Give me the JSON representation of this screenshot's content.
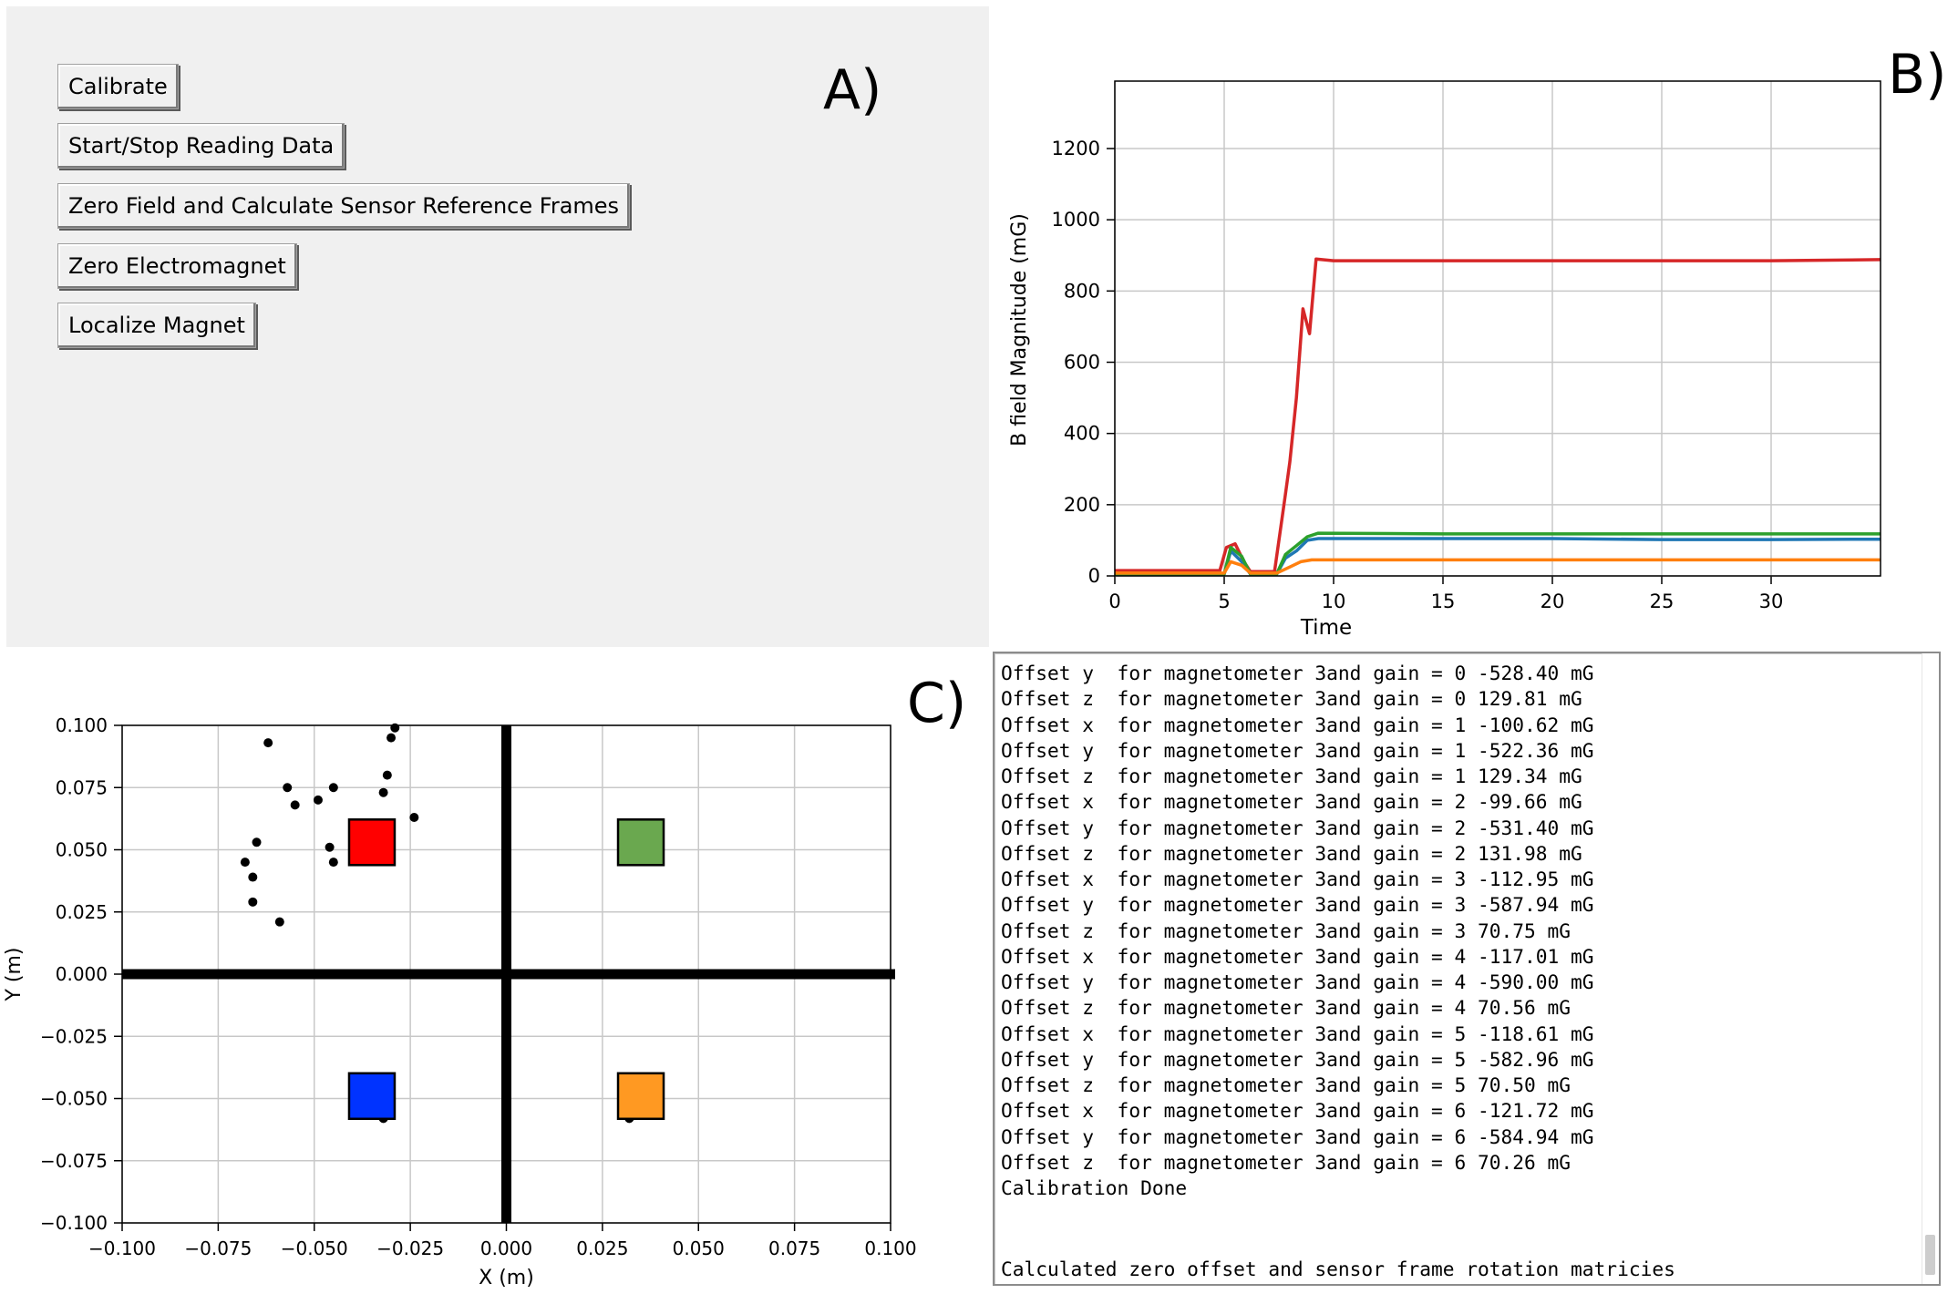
{
  "panel_a": {
    "label": "A)",
    "buttons": [
      {
        "label": "Calibrate"
      },
      {
        "label": "Start/Stop Reading Data"
      },
      {
        "label": "Zero Field and Calculate Sensor Reference Frames"
      },
      {
        "label": "Zero Electromagnet"
      },
      {
        "label": "Localize Magnet"
      }
    ]
  },
  "panel_b": {
    "label": "B)"
  },
  "panel_c": {
    "label": "C)"
  },
  "colors": {
    "red": "#d62728",
    "blue": "#1f77b4",
    "green": "#2ca02c",
    "orange": "#ff7f0e",
    "square_red": "#ff0000",
    "square_green": "#6aa84f",
    "square_blue": "#0033ff",
    "square_orange": "#ff9922"
  },
  "chart_data": [
    {
      "type": "line",
      "xlabel": "Time",
      "ylabel": "B field Magnitude (mG)",
      "xlim": [
        0,
        35
      ],
      "ylim": [
        0,
        1200
      ],
      "xticks": [
        "0",
        "5",
        "10",
        "15",
        "20",
        "25",
        "30"
      ],
      "yticks": [
        "0",
        "200",
        "400",
        "600",
        "800",
        "1000",
        "1200"
      ],
      "grid": true,
      "series": [
        {
          "color": "#d62728",
          "points": [
            [
              0,
              15
            ],
            [
              4.8,
              15
            ],
            [
              5.1,
              80
            ],
            [
              5.5,
              90
            ],
            [
              5.9,
              40
            ],
            [
              6.2,
              12
            ],
            [
              7.3,
              12
            ],
            [
              7.8,
              230
            ],
            [
              8.0,
              320
            ],
            [
              8.3,
              500
            ],
            [
              8.6,
              750
            ],
            [
              8.9,
              680
            ],
            [
              9.2,
              890
            ],
            [
              10,
              885
            ],
            [
              15,
              885
            ],
            [
              20,
              885
            ],
            [
              25,
              885
            ],
            [
              30,
              885
            ],
            [
              35,
              888
            ]
          ]
        },
        {
          "color": "#1f77b4",
          "points": [
            [
              0,
              5
            ],
            [
              5.0,
              5
            ],
            [
              5.3,
              70
            ],
            [
              5.8,
              40
            ],
            [
              6.2,
              5
            ],
            [
              7.4,
              5
            ],
            [
              7.8,
              50
            ],
            [
              8.3,
              70
            ],
            [
              8.8,
              100
            ],
            [
              9.3,
              105
            ],
            [
              15,
              105
            ],
            [
              20,
              105
            ],
            [
              25,
              102
            ],
            [
              30,
              102
            ],
            [
              35,
              103
            ]
          ]
        },
        {
          "color": "#2ca02c",
          "points": [
            [
              0,
              5
            ],
            [
              5.0,
              5
            ],
            [
              5.3,
              80
            ],
            [
              5.8,
              55
            ],
            [
              6.2,
              5
            ],
            [
              7.4,
              5
            ],
            [
              7.8,
              60
            ],
            [
              8.3,
              85
            ],
            [
              8.8,
              110
            ],
            [
              9.3,
              120
            ],
            [
              15,
              118
            ],
            [
              20,
              118
            ],
            [
              25,
              118
            ],
            [
              30,
              118
            ],
            [
              35,
              118
            ]
          ]
        },
        {
          "color": "#ff7f0e",
          "points": [
            [
              0,
              8
            ],
            [
              5.0,
              8
            ],
            [
              5.3,
              40
            ],
            [
              5.8,
              30
            ],
            [
              6.2,
              8
            ],
            [
              7.4,
              8
            ],
            [
              8.0,
              25
            ],
            [
              8.5,
              40
            ],
            [
              9.0,
              45
            ],
            [
              15,
              45
            ],
            [
              20,
              45
            ],
            [
              25,
              45
            ],
            [
              30,
              45
            ],
            [
              35,
              45
            ]
          ]
        }
      ]
    },
    {
      "type": "scatter",
      "xlabel": "X (m)",
      "ylabel": "Y (m)",
      "xlim": [
        -0.1,
        0.1
      ],
      "ylim": [
        -0.1,
        0.1
      ],
      "xticks": [
        "−0.100",
        "−0.075",
        "−0.050",
        "−0.025",
        "0.000",
        "0.025",
        "0.050",
        "0.075",
        "0.100"
      ],
      "yticks": [
        "−0.100",
        "−0.075",
        "−0.050",
        "−0.025",
        "0.000",
        "0.025",
        "0.050",
        "0.075",
        "0.100"
      ],
      "grid": true,
      "points": [
        [
          -0.062,
          0.093
        ],
        [
          -0.057,
          0.075
        ],
        [
          -0.055,
          0.068
        ],
        [
          -0.049,
          0.07
        ],
        [
          -0.045,
          0.075
        ],
        [
          -0.03,
          0.095
        ],
        [
          -0.029,
          0.099
        ],
        [
          -0.031,
          0.08
        ],
        [
          -0.032,
          0.073
        ],
        [
          -0.024,
          0.063
        ],
        [
          -0.046,
          0.051
        ],
        [
          -0.045,
          0.045
        ],
        [
          -0.065,
          0.053
        ],
        [
          -0.068,
          0.045
        ],
        [
          -0.066,
          0.039
        ],
        [
          -0.066,
          0.029
        ],
        [
          -0.059,
          0.021
        ],
        [
          -0.032,
          -0.058
        ],
        [
          0.032,
          -0.058
        ]
      ],
      "squares": [
        {
          "x": -0.035,
          "y": 0.053,
          "color": "#ff0000"
        },
        {
          "x": 0.035,
          "y": 0.053,
          "color": "#6aa84f"
        },
        {
          "x": -0.035,
          "y": -0.049,
          "color": "#0033ff"
        },
        {
          "x": 0.035,
          "y": -0.049,
          "color": "#ff9922"
        }
      ]
    }
  ],
  "console": {
    "lines": [
      "Offset y  for magnetometer 3and gain = 0 -528.40 mG",
      "Offset z  for magnetometer 3and gain = 0 129.81 mG",
      "Offset x  for magnetometer 3and gain = 1 -100.62 mG",
      "Offset y  for magnetometer 3and gain = 1 -522.36 mG",
      "Offset z  for magnetometer 3and gain = 1 129.34 mG",
      "Offset x  for magnetometer 3and gain = 2 -99.66 mG",
      "Offset y  for magnetometer 3and gain = 2 -531.40 mG",
      "Offset z  for magnetometer 3and gain = 2 131.98 mG",
      "Offset x  for magnetometer 3and gain = 3 -112.95 mG",
      "Offset y  for magnetometer 3and gain = 3 -587.94 mG",
      "Offset z  for magnetometer 3and gain = 3 70.75 mG",
      "Offset x  for magnetometer 3and gain = 4 -117.01 mG",
      "Offset y  for magnetometer 3and gain = 4 -590.00 mG",
      "Offset z  for magnetometer 3and gain = 4 70.56 mG",
      "Offset x  for magnetometer 3and gain = 5 -118.61 mG",
      "Offset y  for magnetometer 3and gain = 5 -582.96 mG",
      "Offset z  for magnetometer 3and gain = 5 70.50 mG",
      "Offset x  for magnetometer 3and gain = 6 -121.72 mG",
      "Offset y  for magnetometer 3and gain = 6 -584.94 mG",
      "Offset z  for magnetometer 3and gain = 6 70.26 mG",
      "Calibration Done"
    ],
    "last_line": "Calculated zero offset and sensor frame rotation matricies"
  }
}
